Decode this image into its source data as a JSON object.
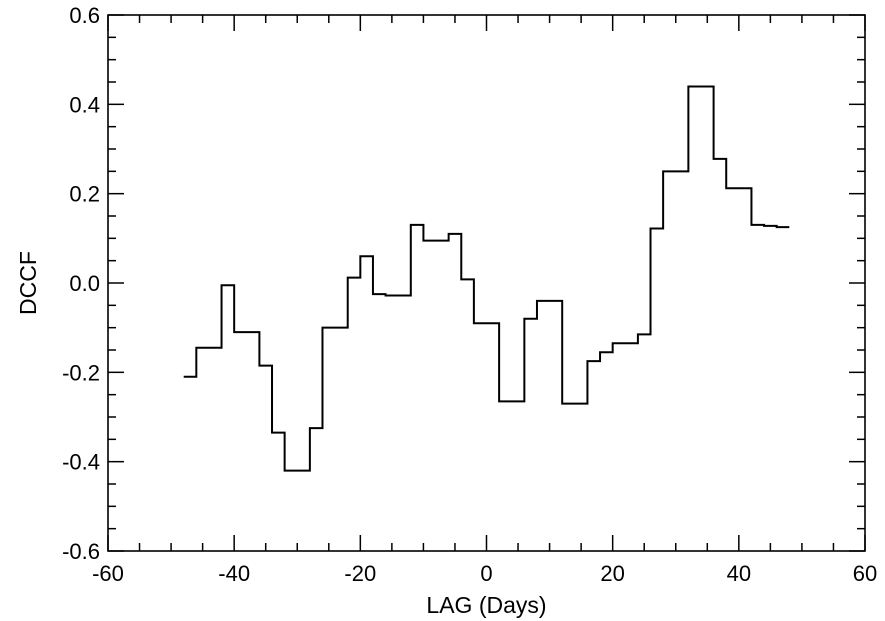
{
  "chart_data": {
    "type": "line",
    "style": "step",
    "xlabel": "LAG (Days)",
    "ylabel": "DCCF",
    "xlim": [
      -60,
      60
    ],
    "ylim": [
      -0.6,
      0.6
    ],
    "xticks": [
      "-60",
      "-40",
      "-20",
      "0",
      "20",
      "40",
      "60"
    ],
    "xtick_values": [
      -60,
      -40,
      -20,
      0,
      20,
      40,
      60
    ],
    "yticks": [
      "0.6",
      "0.4",
      "0.2",
      "0.0",
      "-0.2",
      "-0.4",
      "-0.6"
    ],
    "ytick_values": [
      0.6,
      0.4,
      0.2,
      0.0,
      -0.2,
      -0.4,
      -0.6
    ],
    "grid": false,
    "line_color": "#000000",
    "series": [
      {
        "x": [
          -47,
          -45,
          -43,
          -41,
          -39,
          -37,
          -35,
          -33,
          -31,
          -29,
          -27,
          -25,
          -23,
          -21,
          -19,
          -17,
          -15,
          -13,
          -11,
          -9,
          -7,
          -5,
          -3,
          -1,
          1,
          3,
          5,
          7,
          9,
          11,
          13,
          15,
          17,
          19,
          21,
          23,
          25,
          27,
          29,
          31,
          33,
          35,
          37,
          39,
          41,
          43,
          45,
          47
        ],
        "y": [
          -0.21,
          -0.145,
          -0.145,
          -0.005,
          -0.11,
          -0.11,
          -0.185,
          -0.335,
          -0.42,
          -0.42,
          -0.325,
          -0.1,
          -0.1,
          0.012,
          0.06,
          -0.025,
          -0.028,
          -0.028,
          0.13,
          0.095,
          0.095,
          0.11,
          0.008,
          -0.09,
          -0.09,
          -0.265,
          -0.265,
          -0.08,
          -0.04,
          -0.04,
          -0.27,
          -0.27,
          -0.175,
          -0.155,
          -0.135,
          -0.135,
          -0.115,
          0.122,
          0.25,
          0.25,
          0.44,
          0.44,
          0.278,
          0.212,
          0.212,
          0.13,
          0.128,
          0.125
        ]
      }
    ]
  }
}
